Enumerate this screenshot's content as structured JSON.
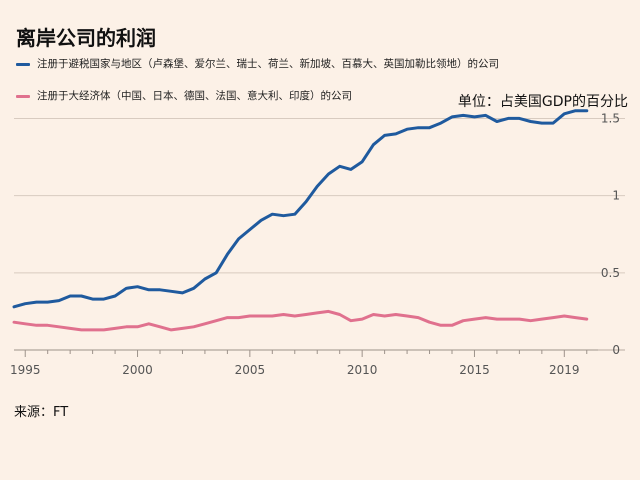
{
  "title": "离岸公司的利润",
  "unit_label": "单位：占美国GDP的百分比",
  "source_label": "来源：FT",
  "colors": {
    "background": "#fcf1e7",
    "blue": "#1f5a9e",
    "pink": "#e0718e",
    "grid": "#d8cbc0"
  },
  "chart_data": {
    "type": "line",
    "title": "离岸公司的利润",
    "ylim": [
      0,
      1.6
    ],
    "xlim": [
      1994.5,
      2020.5
    ],
    "x_ticks": [
      1995,
      2000,
      2005,
      2010,
      2015,
      2019
    ],
    "y_ticks": [
      {
        "value": 0,
        "label": "0"
      },
      {
        "value": 0.5,
        "label": "0.5"
      },
      {
        "value": 1,
        "label": "1"
      },
      {
        "value": 1.5,
        "label": "1.5"
      }
    ],
    "grid": true,
    "series": [
      {
        "name": "注册于避税国家与地区（卢森堡、爱尔兰、瑞士、荷兰、新加坡、百慕大、英国加勒比领地）的公司",
        "color": "#1f5a9e",
        "x": [
          1994.5,
          1995,
          1995.5,
          1996,
          1996.5,
          1997,
          1997.5,
          1998,
          1998.5,
          1999,
          1999.5,
          2000,
          2000.5,
          2001,
          2001.5,
          2002,
          2002.5,
          2003,
          2003.5,
          2004,
          2004.5,
          2005,
          2005.5,
          2006,
          2006.5,
          2007,
          2007.5,
          2008,
          2008.5,
          2009,
          2009.5,
          2010,
          2010.5,
          2011,
          2011.5,
          2012,
          2012.5,
          2013,
          2013.5,
          2014,
          2014.5,
          2015,
          2015.5,
          2016,
          2016.5,
          2017,
          2017.5,
          2018,
          2018.5,
          2019,
          2019.5,
          2020
        ],
        "y": [
          0.28,
          0.3,
          0.31,
          0.31,
          0.32,
          0.35,
          0.35,
          0.33,
          0.33,
          0.35,
          0.4,
          0.41,
          0.39,
          0.39,
          0.38,
          0.37,
          0.4,
          0.46,
          0.5,
          0.62,
          0.72,
          0.78,
          0.84,
          0.88,
          0.87,
          0.88,
          0.96,
          1.06,
          1.14,
          1.19,
          1.17,
          1.22,
          1.33,
          1.39,
          1.4,
          1.43,
          1.44,
          1.44,
          1.47,
          1.51,
          1.52,
          1.51,
          1.52,
          1.48,
          1.5,
          1.5,
          1.48,
          1.47,
          1.47,
          1.53,
          1.55,
          1.55
        ]
      },
      {
        "name": "注册于大经济体（中国、日本、德国、法国、意大利、印度）的公司",
        "color": "#e0718e",
        "x": [
          1994.5,
          1995,
          1995.5,
          1996,
          1996.5,
          1997,
          1997.5,
          1998,
          1998.5,
          1999,
          1999.5,
          2000,
          2000.5,
          2001,
          2001.5,
          2002,
          2002.5,
          2003,
          2003.5,
          2004,
          2004.5,
          2005,
          2005.5,
          2006,
          2006.5,
          2007,
          2007.5,
          2008,
          2008.5,
          2009,
          2009.5,
          2010,
          2010.5,
          2011,
          2011.5,
          2012,
          2012.5,
          2013,
          2013.5,
          2014,
          2014.5,
          2015,
          2015.5,
          2016,
          2016.5,
          2017,
          2017.5,
          2018,
          2018.5,
          2019,
          2019.5,
          2020
        ],
        "y": [
          0.18,
          0.17,
          0.16,
          0.16,
          0.15,
          0.14,
          0.13,
          0.13,
          0.13,
          0.14,
          0.15,
          0.15,
          0.17,
          0.15,
          0.13,
          0.14,
          0.15,
          0.17,
          0.19,
          0.21,
          0.21,
          0.22,
          0.22,
          0.22,
          0.23,
          0.22,
          0.23,
          0.24,
          0.25,
          0.23,
          0.19,
          0.2,
          0.23,
          0.22,
          0.23,
          0.22,
          0.21,
          0.18,
          0.16,
          0.16,
          0.19,
          0.2,
          0.21,
          0.2,
          0.2,
          0.2,
          0.19,
          0.2,
          0.21,
          0.22,
          0.21,
          0.2
        ]
      }
    ]
  }
}
